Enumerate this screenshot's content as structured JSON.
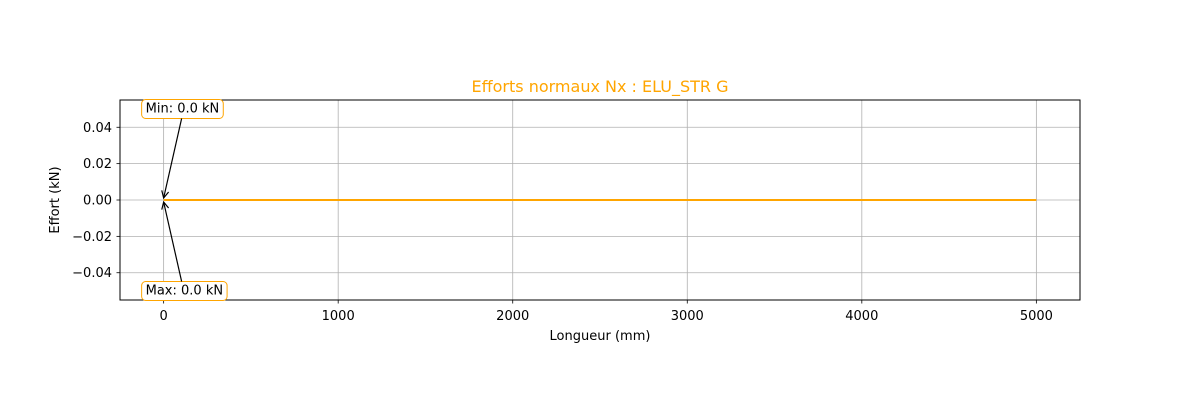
{
  "chart_data": {
    "type": "line",
    "title": "Efforts normaux Nx : ELU_STR G",
    "xlabel": "Longueur (mm)",
    "ylabel": "Effort (kN)",
    "xlim": [
      -250,
      5250
    ],
    "ylim": [
      -0.055,
      0.055
    ],
    "xticks": [
      0,
      1000,
      2000,
      3000,
      4000,
      5000
    ],
    "xtick_labels": [
      "0",
      "1000",
      "2000",
      "3000",
      "4000",
      "5000"
    ],
    "yticks": [
      -0.04,
      -0.02,
      0.0,
      0.02,
      0.04
    ],
    "ytick_labels": [
      "−0.04",
      "−0.02",
      "0.00",
      "0.02",
      "0.04"
    ],
    "grid": true,
    "series": [
      {
        "x": [
          0,
          5000
        ],
        "y": [
          0,
          0
        ]
      }
    ],
    "annotations": [
      {
        "text": "Min: 0.0 kN",
        "x": 0,
        "y": 0
      },
      {
        "text": "Max: 0.0 kN",
        "x": 0,
        "y": 0
      }
    ]
  },
  "colors": {
    "title": "#ffa500",
    "line": "#ffa500",
    "annotation_border": "#ffa500",
    "grid": "#b0b0b0",
    "axis": "#000000"
  }
}
